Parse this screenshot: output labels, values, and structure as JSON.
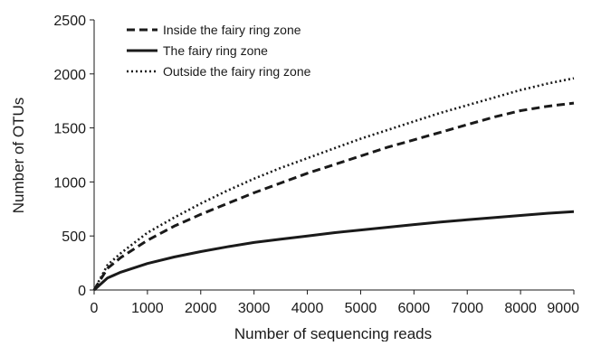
{
  "chart_data": {
    "type": "line",
    "title": "",
    "xlabel": "Number of sequencing reads",
    "ylabel": "Number of OTUs",
    "xlim": [
      0,
      9000
    ],
    "ylim": [
      0,
      2500
    ],
    "xticks": [
      0,
      1000,
      2000,
      3000,
      4000,
      5000,
      6000,
      7000,
      8000,
      9000
    ],
    "yticks": [
      0,
      500,
      1000,
      1500,
      2000,
      2500
    ],
    "grid": false,
    "legend_position": "top-left",
    "series": [
      {
        "name": "Inside the fairy ring zone",
        "style": "dashed",
        "color": "#1a1a1a",
        "x": [
          0,
          250,
          500,
          1000,
          1500,
          2000,
          2500,
          3000,
          3500,
          4000,
          4500,
          5000,
          5500,
          6000,
          6500,
          7000,
          7500,
          8000,
          8500,
          9000
        ],
        "y": [
          0,
          200,
          300,
          460,
          590,
          700,
          800,
          900,
          990,
          1080,
          1160,
          1240,
          1320,
          1390,
          1460,
          1530,
          1600,
          1660,
          1700,
          1730
        ]
      },
      {
        "name": "The fairy ring zone",
        "style": "solid",
        "color": "#1a1a1a",
        "x": [
          0,
          250,
          500,
          1000,
          1500,
          2000,
          2500,
          3000,
          3500,
          4000,
          4500,
          5000,
          5500,
          6000,
          6500,
          7000,
          7500,
          8000,
          8500,
          9000
        ],
        "y": [
          0,
          110,
          165,
          245,
          305,
          355,
          400,
          440,
          470,
          500,
          530,
          555,
          580,
          605,
          630,
          650,
          670,
          690,
          710,
          725
        ]
      },
      {
        "name": "Outside the fairy ring zone",
        "style": "dotted",
        "color": "#1a1a1a",
        "x": [
          0,
          250,
          500,
          1000,
          1500,
          2000,
          2500,
          3000,
          3500,
          4000,
          4500,
          5000,
          5500,
          6000,
          6500,
          7000,
          7500,
          8000,
          8500,
          9000
        ],
        "y": [
          0,
          230,
          340,
          530,
          670,
          800,
          920,
          1030,
          1130,
          1220,
          1310,
          1400,
          1480,
          1560,
          1640,
          1710,
          1780,
          1850,
          1910,
          1960
        ]
      }
    ]
  }
}
